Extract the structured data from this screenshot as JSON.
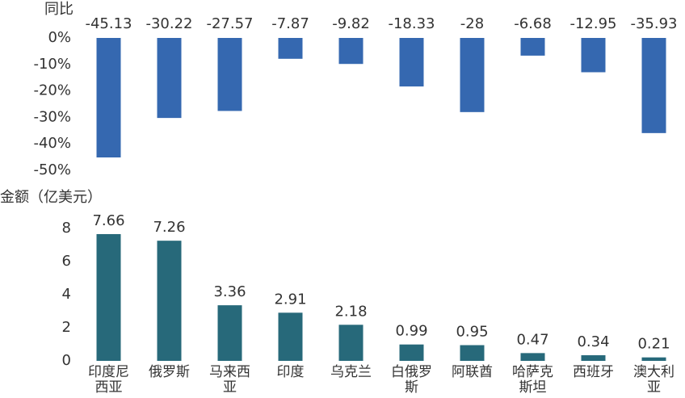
{
  "chart_data": [
    {
      "type": "bar",
      "ylabel": "同比",
      "color": "#3568b0",
      "values": [
        -45.13,
        -30.22,
        -27.57,
        -7.87,
        -9.82,
        -18.33,
        -28,
        -6.68,
        -12.95,
        -35.93
      ],
      "ylim": [
        -50,
        0
      ],
      "yticks": [
        {
          "value": 0,
          "label": "0%"
        },
        {
          "value": -10,
          "label": "-10%"
        },
        {
          "value": -20,
          "label": "-20%"
        },
        {
          "value": -30,
          "label": "-30%"
        },
        {
          "value": -40,
          "label": "-40%"
        },
        {
          "value": -50,
          "label": "-50%"
        }
      ]
    },
    {
      "type": "bar",
      "ylabel": "金额（亿美元）",
      "color": "#27697a",
      "categories": [
        "印度尼西亚",
        "俄罗斯",
        "马来西亚",
        "印度",
        "乌克兰",
        "白俄罗斯",
        "阿联酋",
        "哈萨克斯坦",
        "西班牙",
        "澳大利亚"
      ],
      "values": [
        7.66,
        7.26,
        3.36,
        2.91,
        2.18,
        0.99,
        0.95,
        0.47,
        0.34,
        0.21
      ],
      "ylim": [
        0,
        8
      ],
      "yticks": [
        0,
        2,
        4,
        6,
        8
      ]
    }
  ]
}
